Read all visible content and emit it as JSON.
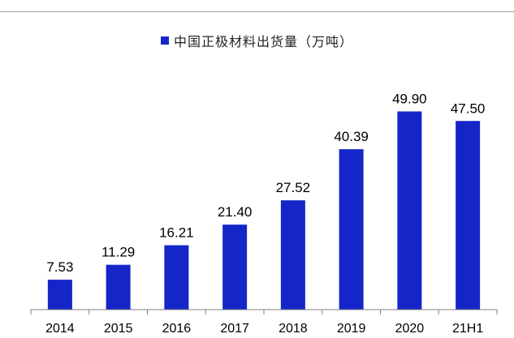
{
  "chart_data": {
    "type": "bar",
    "categories": [
      "2014",
      "2015",
      "2016",
      "2017",
      "2018",
      "2019",
      "2020",
      "21H1"
    ],
    "series": [
      {
        "name": "中国正极材料出货量（万吨）",
        "values": [
          7.53,
          11.29,
          16.21,
          21.4,
          27.52,
          40.39,
          49.9,
          47.5
        ],
        "labels": [
          "7.53",
          "11.29",
          "16.21",
          "21.40",
          "27.52",
          "40.39",
          "49.90",
          "47.50"
        ]
      }
    ],
    "ylim": [
      0,
      60
    ],
    "grid": false,
    "legend_position": "top-center",
    "bar_color": "#1426C8"
  }
}
